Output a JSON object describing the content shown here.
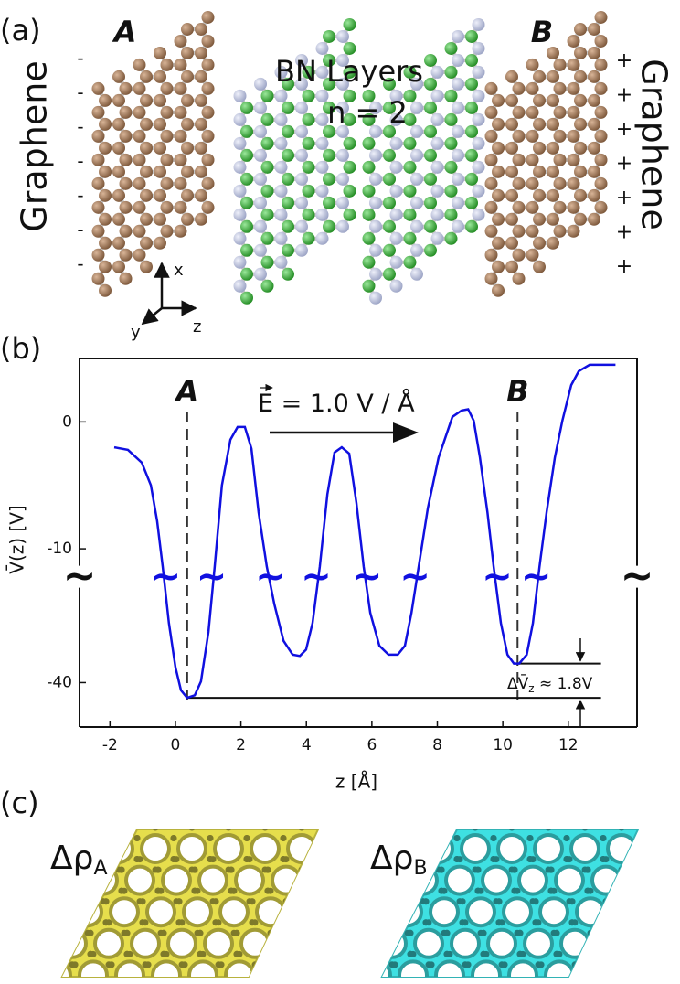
{
  "panel_a": {
    "label": "(a)",
    "left_label": "A",
    "right_label": "B",
    "left_layer": "Graphene",
    "right_layer": "Graphene",
    "center_title": "BN Layers",
    "center_subtitle": "n = 2",
    "left_charge": "-",
    "right_charge": "+",
    "axes": {
      "x": "x",
      "y": "y",
      "z": "z"
    }
  },
  "chart_data": {
    "type": "line",
    "panel_label": "(b)",
    "x_label": "z  [Å]",
    "y_label": "V̄(z)  [V]",
    "xlim": [
      -2.93,
      14.1
    ],
    "ylim": [
      -43.5,
      5
    ],
    "xticks": [
      -2,
      0,
      2,
      4,
      6,
      8,
      10,
      12
    ],
    "yticks": [
      0,
      -10,
      -40
    ],
    "ybreak": [
      -12.2,
      -31.65
    ],
    "break_mark": "~",
    "x": [
      -1.87,
      -1.45,
      -1.03,
      -0.75,
      -0.56,
      -0.39,
      -0.2,
      0,
      0.17,
      0.36,
      0.59,
      0.78,
      1.01,
      1.2,
      1.42,
      1.68,
      1.9,
      2.12,
      2.32,
      2.54,
      2.79,
      3.02,
      3.3,
      3.58,
      3.8,
      3.99,
      4.19,
      4.41,
      4.64,
      4.86,
      5.08,
      5.31,
      5.53,
      5.75,
      5.95,
      6.23,
      6.51,
      6.79,
      7.01,
      7.21,
      7.43,
      7.71,
      8.04,
      8.46,
      8.74,
      8.94,
      9.11,
      9.3,
      9.53,
      9.72,
      9.94,
      10.14,
      10.34,
      10.5,
      10.73,
      10.92,
      11.12,
      11.34,
      11.59,
      11.82,
      12.09,
      12.32,
      12.65,
      13.07,
      13.44
    ],
    "series": [
      {
        "color": "#1010e0",
        "values": [
          -2.0,
          -2.2,
          -3.2,
          -5.0,
          -7.8,
          -11.4,
          -35.3,
          -38.8,
          -40.6,
          -41.2,
          -41.0,
          -39.9,
          -36.0,
          -11.4,
          -5.0,
          -1.4,
          -0.4,
          -0.4,
          -2.1,
          -7.1,
          -11.4,
          -33.8,
          -36.7,
          -37.8,
          -37.9,
          -37.4,
          -35.3,
          -11.4,
          -5.7,
          -2.4,
          -2.0,
          -2.5,
          -6.4,
          -11.4,
          -34.5,
          -37.1,
          -37.8,
          -37.8,
          -37.1,
          -34.5,
          -11.4,
          -6.8,
          -2.8,
          0.4,
          0.9,
          1.0,
          0.1,
          -2.8,
          -7.1,
          -11.4,
          -35.3,
          -37.8,
          -38.5,
          -38.5,
          -37.8,
          -35.3,
          -11.4,
          -7.1,
          -2.8,
          0.1,
          2.9,
          4.0,
          4.5,
          4.5,
          4.5
        ]
      }
    ],
    "vlines": [
      {
        "x": 0.36,
        "label": "A"
      },
      {
        "x": 10.45,
        "label": "B"
      }
    ],
    "hlines": [
      -38.5,
      -41.2
    ],
    "field": {
      "symbol": "E",
      "text": " = 1.0 V / Å"
    },
    "delta_label": {
      "main": "ΔV̄",
      "sub": "z",
      "rest": " ≈ 1.8V"
    }
  },
  "panel_c": {
    "label": "(c)",
    "items": [
      {
        "symbol": "Δρ",
        "sub": "A",
        "color": "#e6de4c"
      },
      {
        "symbol": "Δρ",
        "sub": "B",
        "color": "#3ee0e2"
      }
    ]
  }
}
